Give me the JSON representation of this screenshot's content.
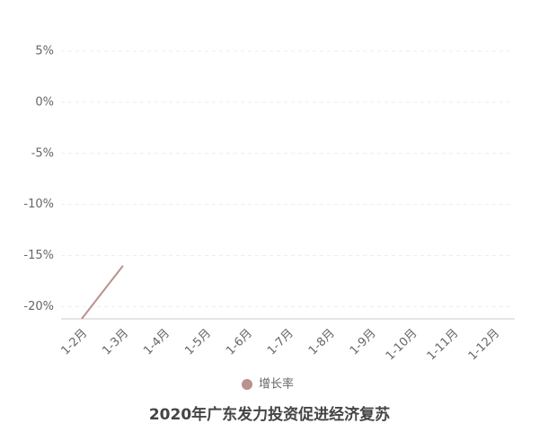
{
  "chart_data": {
    "type": "line",
    "title": "2020年广东发力投资促进经济复苏",
    "categories": [
      "1-2月",
      "1-3月",
      "1-4月",
      "1-5月",
      "1-6月",
      "1-7月",
      "1-8月",
      "1-9月",
      "1-10月",
      "1-11月",
      "1-12月"
    ],
    "series": [
      {
        "name": "增长率",
        "color": "#b9918d",
        "values": [
          -21.2,
          -16,
          null,
          null,
          null,
          null,
          null,
          null,
          null,
          null,
          null
        ]
      }
    ],
    "ylim": [
      -21.2,
      6.5
    ],
    "yticks": [
      {
        "value": -20,
        "label": "-20%"
      },
      {
        "value": -15,
        "label": "-15%"
      },
      {
        "value": -10,
        "label": "-10%"
      },
      {
        "value": -5,
        "label": "-5%"
      },
      {
        "value": 0,
        "label": "0%"
      },
      {
        "value": 5,
        "label": "5%"
      }
    ],
    "grid": true
  }
}
